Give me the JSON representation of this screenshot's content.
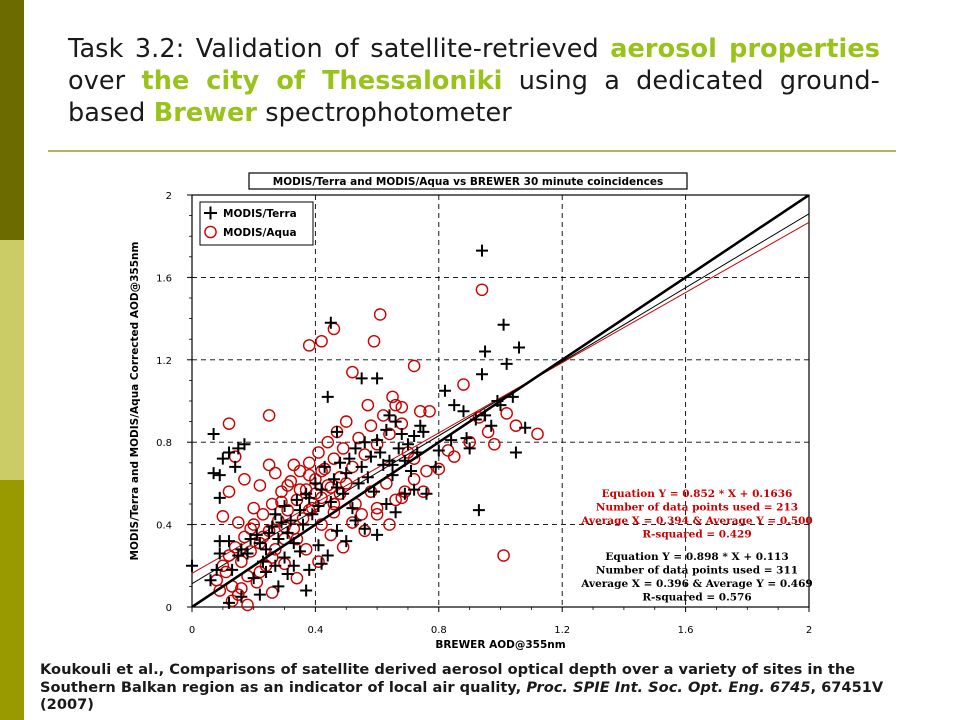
{
  "colors": {
    "sidebar_top": "#6b6b00",
    "sidebar_mid": "#cccc66",
    "sidebar_bottom": "#999900",
    "accent_green": "#99c21a",
    "rule": "#b3b35a",
    "terra_black": "#000000",
    "aqua_red": "#cc0000"
  },
  "title": {
    "part1": "Task 3.2: Validation of satellite-retrieved ",
    "hl1": "aerosol properties",
    "part2": " over ",
    "hl2": "the city of Thessaloniki",
    "part3": " using a dedicated ground-based ",
    "hl3": "Brewer",
    "part4": " spectrophotometer"
  },
  "citation": {
    "authors": "Koukouli et al.",
    "text": ", Comparisons of satellite derived aerosol optical depth over a variety of sites in the Southern Balkan region as an indicator of local air quality, ",
    "journal": "Proc. SPIE Int. Soc. Opt. Eng. 6745",
    "tail": ", 67451V (2007)"
  },
  "chart_data": {
    "type": "scatter",
    "title": "MODIS/Terra and MODIS/Aqua vs BREWER 30 minute coincidences",
    "xlabel": "BREWER AOD@355nm",
    "ylabel": "MODIS/Terra and MODIS/Aqua Corrected AOD@355nm",
    "xlim": [
      0,
      2
    ],
    "ylim": [
      0,
      2
    ],
    "x_ticks": [
      "0",
      "0.4",
      "0.8",
      "1.2",
      "1.6",
      "2"
    ],
    "y_ticks": [
      "0",
      "0.4",
      "0.8",
      "1.2",
      "1.6",
      "2"
    ],
    "grid": "dashed",
    "legend_position": "top-left",
    "series": [
      {
        "name": "MODIS/Terra",
        "marker": "plus",
        "color": "#000000",
        "points": [
          [
            0.07,
            0.84
          ],
          [
            0.07,
            0.65
          ],
          [
            0.09,
            0.64
          ],
          [
            0.09,
            0.53
          ],
          [
            0.1,
            0.72
          ],
          [
            0.12,
            0.75
          ],
          [
            0.14,
            0.68
          ],
          [
            0.15,
            0.77
          ],
          [
            0.17,
            0.79
          ],
          [
            0.0,
            0.2
          ],
          [
            0.06,
            0.13
          ],
          [
            0.08,
            0.18
          ],
          [
            0.09,
            0.26
          ],
          [
            0.09,
            0.32
          ],
          [
            0.12,
            0.32
          ],
          [
            0.13,
            0.18
          ],
          [
            0.15,
            0.25
          ],
          [
            0.16,
            0.28
          ],
          [
            0.18,
            0.26
          ],
          [
            0.19,
            0.33
          ],
          [
            0.21,
            0.35
          ],
          [
            0.22,
            0.31
          ],
          [
            0.23,
            0.22
          ],
          [
            0.25,
            0.36
          ],
          [
            0.26,
            0.39
          ],
          [
            0.27,
            0.45
          ],
          [
            0.28,
            0.33
          ],
          [
            0.29,
            0.41
          ],
          [
            0.3,
            0.49
          ],
          [
            0.31,
            0.36
          ],
          [
            0.32,
            0.42
          ],
          [
            0.33,
            0.31
          ],
          [
            0.34,
            0.52
          ],
          [
            0.35,
            0.47
          ],
          [
            0.36,
            0.4
          ],
          [
            0.37,
            0.55
          ],
          [
            0.38,
            0.53
          ],
          [
            0.39,
            0.45
          ],
          [
            0.4,
            0.6
          ],
          [
            0.41,
            0.49
          ],
          [
            0.42,
            0.57
          ],
          [
            0.43,
            0.68
          ],
          [
            0.45,
            0.51
          ],
          [
            0.46,
            0.62
          ],
          [
            0.47,
            0.58
          ],
          [
            0.48,
            0.7
          ],
          [
            0.49,
            0.55
          ],
          [
            0.5,
            0.65
          ],
          [
            0.51,
            0.72
          ],
          [
            0.52,
            0.48
          ],
          [
            0.53,
            0.77
          ],
          [
            0.54,
            0.6
          ],
          [
            0.55,
            0.68
          ],
          [
            0.56,
            0.8
          ],
          [
            0.57,
            0.63
          ],
          [
            0.58,
            0.73
          ],
          [
            0.59,
            0.56
          ],
          [
            0.6,
            0.81
          ],
          [
            0.61,
            0.75
          ],
          [
            0.62,
            0.69
          ],
          [
            0.63,
            0.86
          ],
          [
            0.64,
            0.71
          ],
          [
            0.65,
            0.64
          ],
          [
            0.66,
            0.9
          ],
          [
            0.67,
            0.77
          ],
          [
            0.68,
            0.84
          ],
          [
            0.69,
            0.71
          ],
          [
            0.7,
            0.79
          ],
          [
            0.71,
            0.66
          ],
          [
            0.72,
            0.83
          ],
          [
            0.73,
            0.75
          ],
          [
            0.74,
            0.88
          ],
          [
            0.2,
            0.14
          ],
          [
            0.24,
            0.17
          ],
          [
            0.27,
            0.2
          ],
          [
            0.3,
            0.24
          ],
          [
            0.33,
            0.2
          ],
          [
            0.35,
            0.27
          ],
          [
            0.38,
            0.18
          ],
          [
            0.41,
            0.3
          ],
          [
            0.44,
            0.25
          ],
          [
            0.47,
            0.37
          ],
          [
            0.5,
            0.32
          ],
          [
            0.53,
            0.42
          ],
          [
            0.56,
            0.38
          ],
          [
            0.6,
            0.35
          ],
          [
            0.63,
            0.5
          ],
          [
            0.66,
            0.46
          ],
          [
            0.69,
            0.55
          ],
          [
            0.72,
            0.57
          ],
          [
            0.76,
            0.55
          ],
          [
            0.79,
            0.68
          ],
          [
            0.44,
            1.02
          ],
          [
            0.47,
            0.85
          ],
          [
            0.55,
            1.11
          ],
          [
            0.6,
            1.11
          ],
          [
            0.64,
            0.93
          ],
          [
            0.65,
            0.69
          ],
          [
            0.75,
            0.85
          ],
          [
            0.8,
            0.76
          ],
          [
            0.84,
            0.81
          ],
          [
            0.85,
            0.98
          ],
          [
            0.88,
            0.95
          ],
          [
            0.89,
            0.82
          ],
          [
            0.9,
            0.77
          ],
          [
            0.92,
            0.91
          ],
          [
            0.93,
            0.47
          ],
          [
            0.95,
            0.93
          ],
          [
            0.97,
            0.88
          ],
          [
            0.99,
            1.0
          ],
          [
            1.0,
            0.98
          ],
          [
            1.02,
            1.18
          ],
          [
            1.04,
            1.02
          ],
          [
            1.06,
            1.26
          ],
          [
            1.08,
            0.87
          ],
          [
            1.05,
            0.75
          ],
          [
            0.94,
            1.73
          ],
          [
            1.01,
            1.37
          ],
          [
            0.95,
            1.24
          ],
          [
            0.45,
            1.38
          ],
          [
            0.94,
            1.13
          ],
          [
            0.82,
            1.05
          ],
          [
            0.16,
            0.05
          ],
          [
            0.12,
            0.02
          ],
          [
            0.22,
            0.06
          ],
          [
            0.28,
            0.1
          ],
          [
            0.42,
            0.21
          ],
          [
            0.37,
            0.08
          ],
          [
            0.31,
            0.16
          ],
          [
            0.24,
            0.28
          ]
        ]
      },
      {
        "name": "MODIS/Aqua",
        "marker": "circle",
        "color": "#cc0000",
        "points": [
          [
            0.08,
            0.13
          ],
          [
            0.09,
            0.08
          ],
          [
            0.1,
            0.2
          ],
          [
            0.11,
            0.17
          ],
          [
            0.12,
            0.25
          ],
          [
            0.13,
            0.1
          ],
          [
            0.14,
            0.29
          ],
          [
            0.15,
            0.06
          ],
          [
            0.16,
            0.22
          ],
          [
            0.17,
            0.34
          ],
          [
            0.18,
            0.15
          ],
          [
            0.19,
            0.27
          ],
          [
            0.2,
            0.4
          ],
          [
            0.21,
            0.12
          ],
          [
            0.22,
            0.31
          ],
          [
            0.23,
            0.45
          ],
          [
            0.24,
            0.2
          ],
          [
            0.25,
            0.37
          ],
          [
            0.26,
            0.5
          ],
          [
            0.27,
            0.28
          ],
          [
            0.28,
            0.42
          ],
          [
            0.29,
            0.56
          ],
          [
            0.3,
            0.33
          ],
          [
            0.31,
            0.47
          ],
          [
            0.32,
            0.61
          ],
          [
            0.33,
            0.38
          ],
          [
            0.34,
            0.52
          ],
          [
            0.35,
            0.66
          ],
          [
            0.36,
            0.43
          ],
          [
            0.37,
            0.57
          ],
          [
            0.38,
            0.7
          ],
          [
            0.39,
            0.48
          ],
          [
            0.4,
            0.62
          ],
          [
            0.41,
            0.75
          ],
          [
            0.42,
            0.53
          ],
          [
            0.43,
            0.67
          ],
          [
            0.44,
            0.8
          ],
          [
            0.45,
            0.58
          ],
          [
            0.46,
            0.72
          ],
          [
            0.47,
            0.85
          ],
          [
            0.48,
            0.63
          ],
          [
            0.49,
            0.77
          ],
          [
            0.5,
            0.9
          ],
          [
            0.52,
            0.68
          ],
          [
            0.54,
            0.82
          ],
          [
            0.56,
            0.74
          ],
          [
            0.58,
            0.88
          ],
          [
            0.6,
            0.79
          ],
          [
            0.62,
            0.93
          ],
          [
            0.64,
            0.84
          ],
          [
            0.66,
            0.98
          ],
          [
            0.68,
            0.89
          ],
          [
            0.7,
            0.75
          ],
          [
            0.72,
            0.62
          ],
          [
            0.74,
            0.95
          ],
          [
            0.1,
            0.44
          ],
          [
            0.12,
            0.56
          ],
          [
            0.14,
            0.73
          ],
          [
            0.17,
            0.62
          ],
          [
            0.2,
            0.48
          ],
          [
            0.22,
            0.59
          ],
          [
            0.25,
            0.69
          ],
          [
            0.27,
            0.65
          ],
          [
            0.29,
            0.51
          ],
          [
            0.31,
            0.59
          ],
          [
            0.33,
            0.69
          ],
          [
            0.35,
            0.57
          ],
          [
            0.38,
            0.64
          ],
          [
            0.4,
            0.55
          ],
          [
            0.42,
            0.66
          ],
          [
            0.44,
            0.59
          ],
          [
            0.46,
            0.46
          ],
          [
            0.48,
            0.55
          ],
          [
            0.5,
            0.6
          ],
          [
            0.53,
            0.5
          ],
          [
            0.55,
            0.45
          ],
          [
            0.58,
            0.56
          ],
          [
            0.6,
            0.48
          ],
          [
            0.63,
            0.6
          ],
          [
            0.66,
            0.52
          ],
          [
            0.69,
            0.56
          ],
          [
            0.72,
            0.72
          ],
          [
            0.76,
            0.66
          ],
          [
            0.12,
            0.89
          ],
          [
            0.25,
            0.93
          ],
          [
            0.38,
            1.27
          ],
          [
            0.42,
            1.29
          ],
          [
            0.46,
            1.35
          ],
          [
            0.52,
            1.14
          ],
          [
            0.59,
            1.29
          ],
          [
            0.61,
            1.42
          ],
          [
            0.57,
            0.98
          ],
          [
            0.65,
            1.02
          ],
          [
            0.68,
            0.97
          ],
          [
            0.72,
            1.17
          ],
          [
            0.77,
            0.95
          ],
          [
            0.8,
            0.67
          ],
          [
            0.83,
            0.76
          ],
          [
            0.85,
            0.73
          ],
          [
            0.88,
            1.08
          ],
          [
            0.9,
            0.8
          ],
          [
            0.93,
            0.92
          ],
          [
            0.96,
            0.85
          ],
          [
            0.98,
            0.79
          ],
          [
            1.02,
            0.94
          ],
          [
            1.05,
            0.88
          ],
          [
            1.12,
            0.84
          ],
          [
            0.94,
            1.54
          ],
          [
            1.01,
            0.25
          ],
          [
            0.13,
            0.03
          ],
          [
            0.16,
            0.09
          ],
          [
            0.18,
            0.01
          ],
          [
            0.22,
            0.17
          ],
          [
            0.26,
            0.07
          ],
          [
            0.3,
            0.21
          ],
          [
            0.34,
            0.14
          ],
          [
            0.37,
            0.28
          ],
          [
            0.41,
            0.22
          ],
          [
            0.45,
            0.35
          ],
          [
            0.49,
            0.29
          ],
          [
            0.52,
            0.41
          ],
          [
            0.56,
            0.37
          ],
          [
            0.6,
            0.45
          ],
          [
            0.64,
            0.4
          ],
          [
            0.68,
            0.53
          ],
          [
            0.75,
            0.56
          ],
          [
            0.15,
            0.41
          ],
          [
            0.19,
            0.38
          ],
          [
            0.23,
            0.34
          ],
          [
            0.26,
            0.24
          ],
          [
            0.3,
            0.39
          ],
          [
            0.34,
            0.33
          ],
          [
            0.38,
            0.47
          ],
          [
            0.42,
            0.4
          ],
          [
            0.46,
            0.5
          ]
        ]
      }
    ],
    "fit_lines": [
      {
        "color": "#000000",
        "slope": 0.898,
        "intercept": 0.113
      },
      {
        "color": "#cc0000",
        "slope": 0.852,
        "intercept": 0.1636
      },
      {
        "color": "#000000",
        "slope": 1.0,
        "intercept": 0.0
      }
    ],
    "annotations": {
      "aqua_stats": [
        "Equation Y = 0.852 * X + 0.1636",
        "Number of data points used = 213",
        "Average X = 0.394 & Average Y = 0.500",
        "R-squared = 0.429"
      ],
      "terra_stats": [
        "Equation Y = 0.898 * X + 0.113",
        "Number of data points used = 311",
        "Average X = 0.396 & Average Y = 0.469",
        "R-squared = 0.576"
      ]
    }
  }
}
